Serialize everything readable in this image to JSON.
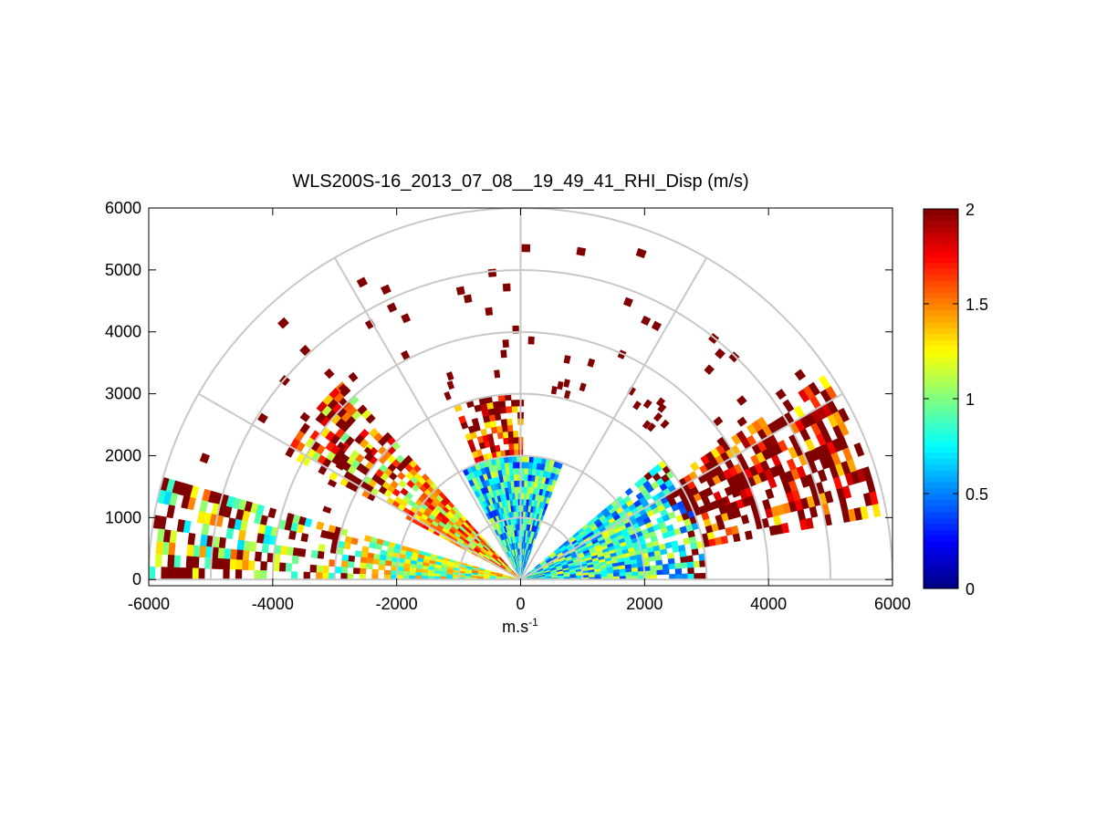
{
  "chart_data": {
    "type": "heatmap",
    "subtype": "polar-rhi-scan",
    "title": "WLS200S-16_2013_07_08__19_49_41_RHI_Disp (m/s)",
    "xlabel": {
      "base": "m.s",
      "exponent": "-1"
    },
    "ylabel": "",
    "xlim": [
      -6000,
      6000
    ],
    "ylim": [
      -100,
      6000
    ],
    "xticks": [
      "-6000",
      "-4000",
      "-2000",
      "0",
      "2000",
      "4000",
      "6000"
    ],
    "yticks": [
      "0",
      "1000",
      "2000",
      "3000",
      "4000",
      "5000",
      "6000"
    ],
    "polar_grid": {
      "range_rings": [
        1000,
        2000,
        3000,
        4000,
        5000,
        6000
      ],
      "spoke_angles_deg": [
        0,
        30,
        60,
        90,
        120,
        150,
        180
      ]
    },
    "colorbar": {
      "min": 0,
      "max": 2,
      "ticks": [
        "0",
        "0.5",
        "1",
        "1.5",
        "2"
      ],
      "colormap": "jet"
    },
    "sectors": [
      {
        "name": "left-low-sector",
        "azimuth_deg": [
          164,
          180
        ],
        "range_m": [
          0,
          6000
        ],
        "mean_value": 1.1
      },
      {
        "name": "left-mid-sector",
        "azimuth_deg": [
          132,
          152
        ],
        "range_m": [
          0,
          4300
        ],
        "mean_value": 1.4
      },
      {
        "name": "central-sector",
        "azimuth_deg": [
          70,
          118
        ],
        "range_m": [
          0,
          2000
        ],
        "mean_value": 0.75
      },
      {
        "name": "central-upper-sector",
        "azimuth_deg": [
          89,
          110
        ],
        "range_m": [
          2000,
          3000
        ],
        "mean_value": 1.7
      },
      {
        "name": "right-sector",
        "azimuth_deg": [
          0,
          40
        ],
        "range_m": [
          0,
          3000
        ],
        "mean_value": 0.8
      },
      {
        "name": "right-outer-sector",
        "azimuth_deg": [
          10,
          33
        ],
        "range_m": [
          3000,
          5900
        ],
        "mean_value": 1.7
      }
    ],
    "isolated_cells_value": 2
  },
  "colors": {
    "grid": "#c8c8c8",
    "axis": "#000000",
    "background": "#ffffff"
  }
}
